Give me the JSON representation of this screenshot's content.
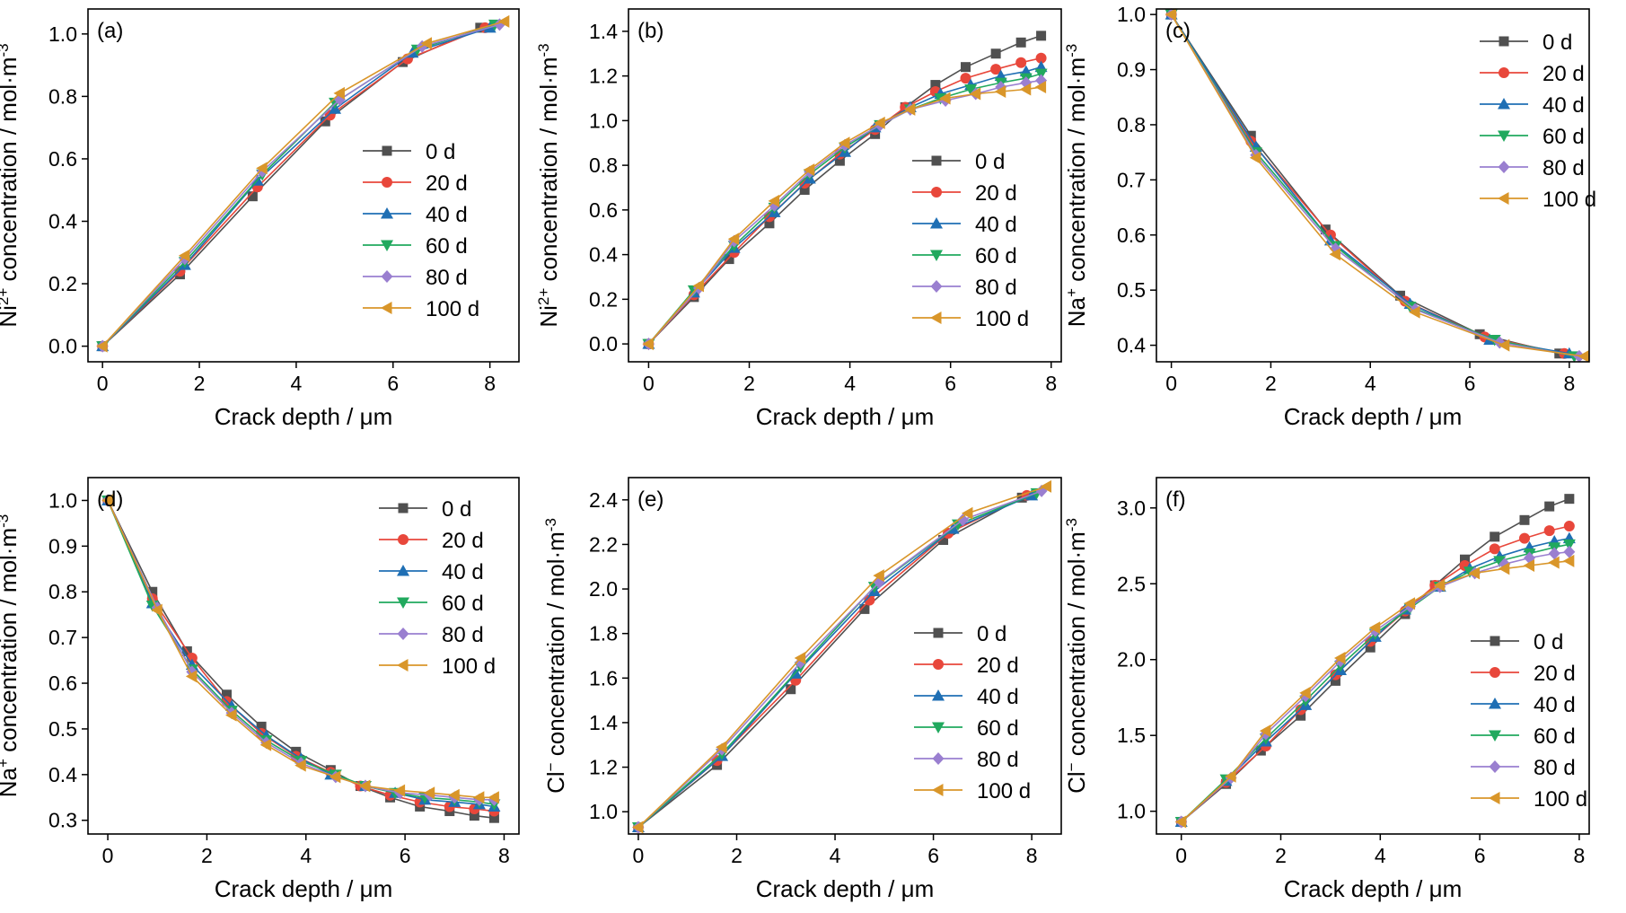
{
  "figure": {
    "x_label": "Crack depth / μm",
    "legend": [
      "0 d",
      "20 d",
      "40 d",
      "60 d",
      "80 d",
      "100 d"
    ],
    "series_colors": [
      "#505050",
      "#e8473b",
      "#1f6fb4",
      "#21a95e",
      "#9a7fd0",
      "#d9962a"
    ],
    "series_markers": [
      "square",
      "circle",
      "triangle-up",
      "triangle-down",
      "diamond",
      "triangle-left"
    ]
  },
  "chart_data": [
    {
      "type": "line",
      "panel_label": "(a)",
      "ion": "Ni",
      "charge": "2+",
      "xlim": [
        -0.3,
        8.6
      ],
      "ylim": [
        -0.05,
        1.08
      ],
      "xticks": [
        "0",
        "2",
        "4",
        "6",
        "8"
      ],
      "yticks": [
        "0.0",
        "0.2",
        "0.4",
        "0.6",
        "0.8",
        "1.0"
      ],
      "legend_position": "center-right",
      "series": [
        {
          "name": "0 d",
          "x": [
            0,
            1.6,
            3.1,
            4.6,
            6.2,
            7.8
          ],
          "y": [
            0,
            0.23,
            0.48,
            0.72,
            0.91,
            1.02
          ]
        },
        {
          "name": "20 d",
          "x": [
            0,
            1.6,
            3.2,
            4.7,
            6.3,
            7.9
          ],
          "y": [
            0,
            0.24,
            0.51,
            0.74,
            0.92,
            1.02
          ]
        },
        {
          "name": "40 d",
          "x": [
            0,
            1.7,
            3.2,
            4.8,
            6.4,
            8.0
          ],
          "y": [
            0,
            0.26,
            0.53,
            0.76,
            0.94,
            1.02
          ]
        },
        {
          "name": "60 d",
          "x": [
            0,
            1.7,
            3.3,
            4.8,
            6.5,
            8.1
          ],
          "y": [
            0,
            0.27,
            0.55,
            0.78,
            0.95,
            1.03
          ]
        },
        {
          "name": "80 d",
          "x": [
            0,
            1.7,
            3.3,
            4.9,
            6.6,
            8.2
          ],
          "y": [
            0,
            0.28,
            0.56,
            0.79,
            0.96,
            1.03
          ]
        },
        {
          "name": "100 d",
          "x": [
            0,
            1.7,
            3.3,
            4.9,
            6.7,
            8.3
          ],
          "y": [
            0,
            0.29,
            0.57,
            0.81,
            0.97,
            1.04
          ]
        }
      ]
    },
    {
      "type": "line",
      "panel_label": "(b)",
      "ion": "Ni",
      "charge": "2+",
      "xlim": [
        -0.4,
        8.2
      ],
      "ylim": [
        -0.08,
        1.5
      ],
      "xticks": [
        "0",
        "2",
        "4",
        "6",
        "8"
      ],
      "yticks": [
        "0.0",
        "0.2",
        "0.4",
        "0.6",
        "0.8",
        "1.0",
        "1.2",
        "1.4"
      ],
      "legend_position": "lower-right",
      "series": [
        {
          "name": "0 d",
          "x": [
            0,
            0.9,
            1.6,
            2.4,
            3.1,
            3.8,
            4.5,
            5.1,
            5.7,
            6.3,
            6.9,
            7.4,
            7.8
          ],
          "y": [
            0,
            0.21,
            0.38,
            0.54,
            0.69,
            0.82,
            0.94,
            1.06,
            1.16,
            1.24,
            1.3,
            1.35,
            1.38
          ]
        },
        {
          "name": "20 d",
          "x": [
            0,
            0.9,
            1.7,
            2.4,
            3.1,
            3.8,
            4.5,
            5.1,
            5.7,
            6.3,
            6.9,
            7.4,
            7.8
          ],
          "y": [
            0,
            0.22,
            0.41,
            0.57,
            0.72,
            0.85,
            0.96,
            1.06,
            1.13,
            1.19,
            1.23,
            1.26,
            1.28
          ]
        },
        {
          "name": "40 d",
          "x": [
            0,
            0.9,
            1.7,
            2.5,
            3.2,
            3.9,
            4.5,
            5.2,
            5.8,
            6.4,
            7.0,
            7.5,
            7.8
          ],
          "y": [
            0,
            0.23,
            0.43,
            0.59,
            0.74,
            0.86,
            0.97,
            1.06,
            1.12,
            1.16,
            1.2,
            1.22,
            1.24
          ]
        },
        {
          "name": "60 d",
          "x": [
            0,
            0.9,
            1.7,
            2.5,
            3.2,
            3.9,
            4.6,
            5.2,
            5.8,
            6.4,
            7.0,
            7.5,
            7.8
          ],
          "y": [
            0,
            0.24,
            0.44,
            0.61,
            0.76,
            0.88,
            0.98,
            1.05,
            1.1,
            1.14,
            1.17,
            1.19,
            1.21
          ]
        },
        {
          "name": "80 d",
          "x": [
            0,
            1.0,
            1.7,
            2.5,
            3.2,
            3.9,
            4.6,
            5.2,
            5.9,
            6.5,
            7.0,
            7.5,
            7.8
          ],
          "y": [
            0,
            0.25,
            0.46,
            0.62,
            0.77,
            0.89,
            0.98,
            1.05,
            1.09,
            1.12,
            1.15,
            1.17,
            1.18
          ]
        },
        {
          "name": "100 d",
          "x": [
            0,
            1.0,
            1.7,
            2.5,
            3.2,
            3.9,
            4.6,
            5.2,
            5.9,
            6.5,
            7.0,
            7.5,
            7.8
          ],
          "y": [
            0,
            0.26,
            0.47,
            0.64,
            0.78,
            0.9,
            0.99,
            1.05,
            1.1,
            1.12,
            1.13,
            1.14,
            1.15
          ]
        }
      ]
    },
    {
      "type": "line",
      "panel_label": "(c)",
      "ion": "Na",
      "charge": "+",
      "xlim": [
        -0.3,
        8.4
      ],
      "ylim": [
        0.37,
        1.01
      ],
      "xticks": [
        "0",
        "2",
        "4",
        "6",
        "8"
      ],
      "yticks": [
        "0.4",
        "0.5",
        "0.6",
        "0.7",
        "0.8",
        "0.9",
        "1.0"
      ],
      "legend_position": "top-right",
      "series": [
        {
          "name": "0 d",
          "x": [
            0,
            1.6,
            3.1,
            4.6,
            6.2,
            7.8
          ],
          "y": [
            1.0,
            0.78,
            0.61,
            0.49,
            0.42,
            0.385
          ]
        },
        {
          "name": "20 d",
          "x": [
            0,
            1.6,
            3.2,
            4.7,
            6.3,
            7.9
          ],
          "y": [
            1.0,
            0.77,
            0.6,
            0.48,
            0.415,
            0.385
          ]
        },
        {
          "name": "40 d",
          "x": [
            0,
            1.7,
            3.2,
            4.8,
            6.4,
            8.0
          ],
          "y": [
            1.0,
            0.76,
            0.59,
            0.475,
            0.41,
            0.385
          ]
        },
        {
          "name": "60 d",
          "x": [
            0,
            1.7,
            3.3,
            4.8,
            6.5,
            8.1
          ],
          "y": [
            1.0,
            0.75,
            0.58,
            0.47,
            0.41,
            0.38
          ]
        },
        {
          "name": "80 d",
          "x": [
            0,
            1.7,
            3.3,
            4.9,
            6.6,
            8.2
          ],
          "y": [
            1.0,
            0.745,
            0.575,
            0.465,
            0.405,
            0.38
          ]
        },
        {
          "name": "100 d",
          "x": [
            0,
            1.7,
            3.3,
            4.9,
            6.7,
            8.3
          ],
          "y": [
            1.0,
            0.74,
            0.565,
            0.46,
            0.4,
            0.38
          ]
        }
      ]
    },
    {
      "type": "line",
      "panel_label": "(d)",
      "ion": "Na",
      "charge": "+",
      "xlim": [
        -0.4,
        8.3
      ],
      "ylim": [
        0.27,
        1.05
      ],
      "xticks": [
        "0",
        "2",
        "4",
        "6",
        "8"
      ],
      "yticks": [
        "0.3",
        "0.4",
        "0.5",
        "0.6",
        "0.7",
        "0.8",
        "0.9",
        "1.0"
      ],
      "legend_position": "top-right",
      "series": [
        {
          "name": "0 d",
          "x": [
            0,
            0.9,
            1.6,
            2.4,
            3.1,
            3.8,
            4.5,
            5.1,
            5.7,
            6.3,
            6.9,
            7.4,
            7.8
          ],
          "y": [
            1.0,
            0.8,
            0.67,
            0.575,
            0.505,
            0.45,
            0.41,
            0.375,
            0.35,
            0.33,
            0.32,
            0.31,
            0.305
          ]
        },
        {
          "name": "20 d",
          "x": [
            0,
            0.9,
            1.7,
            2.4,
            3.1,
            3.8,
            4.5,
            5.1,
            5.7,
            6.3,
            6.9,
            7.4,
            7.8
          ],
          "y": [
            1.0,
            0.785,
            0.655,
            0.56,
            0.49,
            0.44,
            0.405,
            0.375,
            0.355,
            0.34,
            0.33,
            0.325,
            0.32
          ]
        },
        {
          "name": "40 d",
          "x": [
            0,
            0.9,
            1.7,
            2.5,
            3.2,
            3.9,
            4.5,
            5.2,
            5.8,
            6.4,
            7.0,
            7.5,
            7.8
          ],
          "y": [
            1.0,
            0.775,
            0.64,
            0.55,
            0.485,
            0.435,
            0.4,
            0.375,
            0.36,
            0.345,
            0.34,
            0.335,
            0.33
          ]
        },
        {
          "name": "60 d",
          "x": [
            0,
            0.9,
            1.7,
            2.5,
            3.2,
            3.9,
            4.6,
            5.2,
            5.8,
            6.4,
            7.0,
            7.5,
            7.8
          ],
          "y": [
            1.0,
            0.77,
            0.63,
            0.54,
            0.475,
            0.43,
            0.4,
            0.375,
            0.36,
            0.35,
            0.345,
            0.34,
            0.335
          ]
        },
        {
          "name": "80 d",
          "x": [
            0,
            1.0,
            1.7,
            2.5,
            3.2,
            3.9,
            4.6,
            5.2,
            5.9,
            6.5,
            7.0,
            7.5,
            7.8
          ],
          "y": [
            1.0,
            0.765,
            0.625,
            0.535,
            0.47,
            0.425,
            0.395,
            0.375,
            0.36,
            0.355,
            0.35,
            0.345,
            0.345
          ]
        },
        {
          "name": "100 d",
          "x": [
            0,
            1.0,
            1.7,
            2.5,
            3.2,
            3.9,
            4.6,
            5.2,
            5.9,
            6.5,
            7.0,
            7.5,
            7.8
          ],
          "y": [
            1.0,
            0.76,
            0.615,
            0.53,
            0.465,
            0.42,
            0.395,
            0.375,
            0.365,
            0.36,
            0.355,
            0.35,
            0.35
          ]
        }
      ]
    },
    {
      "type": "line",
      "panel_label": "(e)",
      "ion": "Cl",
      "charge": "−",
      "xlim": [
        -0.2,
        8.6
      ],
      "ylim": [
        0.9,
        2.5
      ],
      "xticks": [
        "0",
        "2",
        "4",
        "6",
        "8"
      ],
      "yticks": [
        "1.0",
        "1.2",
        "1.4",
        "1.6",
        "1.8",
        "2.0",
        "2.2",
        "2.4"
      ],
      "legend_position": "lower-right",
      "series": [
        {
          "name": "0 d",
          "x": [
            0,
            1.6,
            3.1,
            4.6,
            6.2,
            7.8
          ],
          "y": [
            0.93,
            1.21,
            1.55,
            1.91,
            2.22,
            2.41
          ]
        },
        {
          "name": "20 d",
          "x": [
            0,
            1.6,
            3.2,
            4.7,
            6.3,
            7.9
          ],
          "y": [
            0.93,
            1.23,
            1.59,
            1.95,
            2.25,
            2.42
          ]
        },
        {
          "name": "40 d",
          "x": [
            0,
            1.7,
            3.2,
            4.8,
            6.4,
            8.0
          ],
          "y": [
            0.93,
            1.25,
            1.62,
            1.99,
            2.27,
            2.42
          ]
        },
        {
          "name": "60 d",
          "x": [
            0,
            1.7,
            3.3,
            4.8,
            6.5,
            8.1
          ],
          "y": [
            0.93,
            1.26,
            1.65,
            2.01,
            2.29,
            2.43
          ]
        },
        {
          "name": "80 d",
          "x": [
            0,
            1.7,
            3.3,
            4.9,
            6.6,
            8.2
          ],
          "y": [
            0.93,
            1.28,
            1.67,
            2.03,
            2.31,
            2.44
          ]
        },
        {
          "name": "100 d",
          "x": [
            0,
            1.7,
            3.3,
            4.9,
            6.7,
            8.3
          ],
          "y": [
            0.93,
            1.29,
            1.69,
            2.06,
            2.34,
            2.46
          ]
        }
      ]
    },
    {
      "type": "line",
      "panel_label": "(f)",
      "ion": "Cl",
      "charge": "−",
      "xlim": [
        -0.5,
        8.2
      ],
      "ylim": [
        0.85,
        3.2
      ],
      "xticks": [
        "0",
        "2",
        "4",
        "6",
        "8"
      ],
      "yticks": [
        "1.0",
        "1.5",
        "2.0",
        "2.5",
        "3.0"
      ],
      "legend_position": "lower-right",
      "series": [
        {
          "name": "0 d",
          "x": [
            0,
            0.9,
            1.6,
            2.4,
            3.1,
            3.8,
            4.5,
            5.1,
            5.7,
            6.3,
            6.9,
            7.4,
            7.8
          ],
          "y": [
            0.93,
            1.18,
            1.4,
            1.63,
            1.86,
            2.08,
            2.3,
            2.49,
            2.66,
            2.81,
            2.92,
            3.01,
            3.06
          ]
        },
        {
          "name": "20 d",
          "x": [
            0,
            0.9,
            1.7,
            2.4,
            3.1,
            3.8,
            4.5,
            5.1,
            5.7,
            6.3,
            6.9,
            7.4,
            7.8
          ],
          "y": [
            0.93,
            1.19,
            1.43,
            1.67,
            1.9,
            2.12,
            2.32,
            2.49,
            2.62,
            2.73,
            2.8,
            2.85,
            2.88
          ]
        },
        {
          "name": "40 d",
          "x": [
            0,
            0.9,
            1.7,
            2.5,
            3.2,
            3.9,
            4.5,
            5.2,
            5.8,
            6.4,
            7.0,
            7.5,
            7.8
          ],
          "y": [
            0.93,
            1.2,
            1.46,
            1.7,
            1.93,
            2.15,
            2.33,
            2.48,
            2.6,
            2.68,
            2.74,
            2.78,
            2.8
          ]
        },
        {
          "name": "60 d",
          "x": [
            0,
            0.9,
            1.7,
            2.5,
            3.2,
            3.9,
            4.6,
            5.2,
            5.8,
            6.4,
            7.0,
            7.5,
            7.8
          ],
          "y": [
            0.93,
            1.21,
            1.48,
            1.73,
            1.96,
            2.17,
            2.34,
            2.48,
            2.58,
            2.65,
            2.7,
            2.74,
            2.76
          ]
        },
        {
          "name": "80 d",
          "x": [
            0,
            1.0,
            1.7,
            2.5,
            3.2,
            3.9,
            4.6,
            5.2,
            5.9,
            6.5,
            7.0,
            7.5,
            7.8
          ],
          "y": [
            0.93,
            1.22,
            1.51,
            1.76,
            1.99,
            2.19,
            2.35,
            2.48,
            2.57,
            2.63,
            2.67,
            2.7,
            2.71
          ]
        },
        {
          "name": "100 d",
          "x": [
            0,
            1.0,
            1.7,
            2.5,
            3.2,
            3.9,
            4.6,
            5.2,
            5.9,
            6.5,
            7.0,
            7.5,
            7.8
          ],
          "y": [
            0.93,
            1.23,
            1.53,
            1.78,
            2.01,
            2.21,
            2.37,
            2.49,
            2.57,
            2.6,
            2.62,
            2.64,
            2.65
          ]
        }
      ]
    }
  ]
}
